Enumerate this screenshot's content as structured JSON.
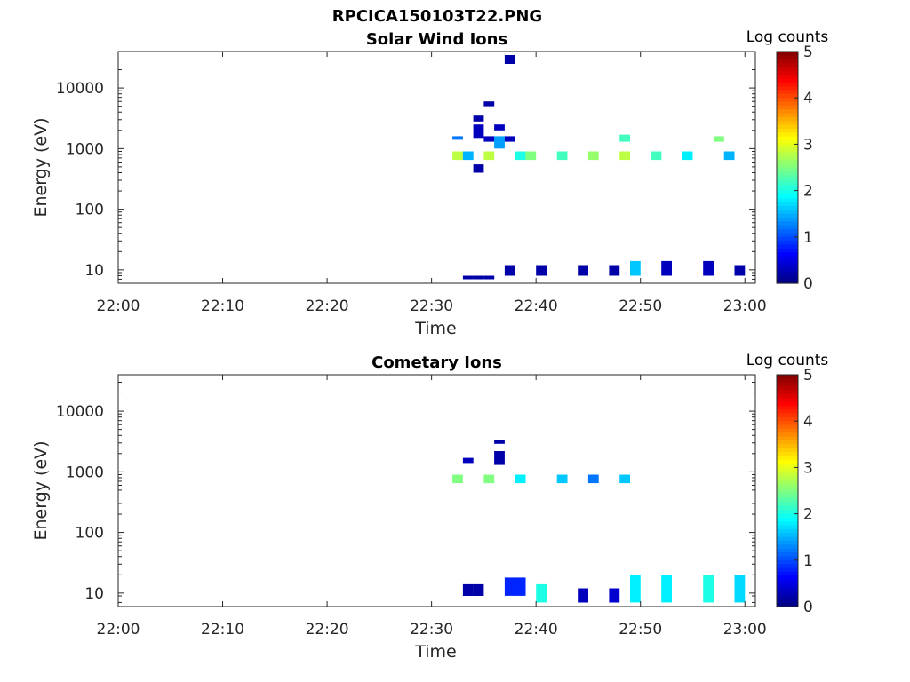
{
  "figure": {
    "filename": "RPCICA150103T22.PNG"
  },
  "chart_data": [
    {
      "type": "heatmap",
      "title": "Solar Wind Ions",
      "xlabel": "Time",
      "ylabel": "Energy (eV)",
      "x_ticks": [
        "22:00",
        "22:10",
        "22:20",
        "22:30",
        "22:40",
        "22:50",
        "23:00"
      ],
      "x_range": [
        "22:00",
        "23:01"
      ],
      "y_scale": "log",
      "y_ticks": [
        10,
        100,
        1000,
        10000
      ],
      "y_tick_labels": [
        "10",
        "100",
        "1000",
        "10000"
      ],
      "y_range": [
        6,
        40000
      ],
      "colorbar": {
        "label": "Log counts",
        "range": [
          0,
          5
        ],
        "ticks": [
          "0",
          "1",
          "2",
          "3",
          "4",
          "5"
        ],
        "colormap": "jet"
      },
      "cells": [
        {
          "t": "22:33",
          "e": [
            7,
            8
          ],
          "c": 0.2
        },
        {
          "t": "22:34",
          "e": [
            7,
            8
          ],
          "c": 0.2
        },
        {
          "t": "22:35",
          "e": [
            7,
            8
          ],
          "c": 0.2
        },
        {
          "t": "22:32",
          "e": [
            1400,
            1600
          ],
          "c": 1.2
        },
        {
          "t": "22:32",
          "e": [
            650,
            900
          ],
          "c": 2.8
        },
        {
          "t": "22:33",
          "e": [
            650,
            900
          ],
          "c": 1.5
        },
        {
          "t": "22:34",
          "e": [
            400,
            550
          ],
          "c": 0.2
        },
        {
          "t": "22:34",
          "e": [
            1500,
            2500
          ],
          "c": 0.3
        },
        {
          "t": "22:34",
          "e": [
            2800,
            3500
          ],
          "c": 0.2
        },
        {
          "t": "22:35",
          "e": [
            5000,
            6000
          ],
          "c": 0.2
        },
        {
          "t": "22:35",
          "e": [
            1300,
            1600
          ],
          "c": 0.3
        },
        {
          "t": "22:35",
          "e": [
            650,
            900
          ],
          "c": 2.8
        },
        {
          "t": "22:36",
          "e": [
            2000,
            2500
          ],
          "c": 0.3
        },
        {
          "t": "22:36",
          "e": [
            1000,
            1600
          ],
          "c": 1.4
        },
        {
          "t": "22:37",
          "e": [
            25000,
            35000
          ],
          "c": 0.2
        },
        {
          "t": "22:37",
          "e": [
            8,
            12
          ],
          "c": 0.2
        },
        {
          "t": "22:37",
          "e": [
            1300,
            1600
          ],
          "c": 0.3
        },
        {
          "t": "22:38",
          "e": [
            650,
            900
          ],
          "c": 2.0
        },
        {
          "t": "22:39",
          "e": [
            650,
            900
          ],
          "c": 2.5
        },
        {
          "t": "22:42",
          "e": [
            650,
            900
          ],
          "c": 2.2
        },
        {
          "t": "22:45",
          "e": [
            650,
            900
          ],
          "c": 2.6
        },
        {
          "t": "22:48",
          "e": [
            650,
            900
          ],
          "c": 2.8
        },
        {
          "t": "22:48",
          "e": [
            1300,
            1700
          ],
          "c": 2.2
        },
        {
          "t": "22:51",
          "e": [
            650,
            900
          ],
          "c": 2.2
        },
        {
          "t": "22:54",
          "e": [
            650,
            900
          ],
          "c": 1.8
        },
        {
          "t": "22:57",
          "e": [
            1300,
            1600
          ],
          "c": 2.5
        },
        {
          "t": "22:58",
          "e": [
            650,
            900
          ],
          "c": 1.5
        },
        {
          "t": "22:40",
          "e": [
            8,
            12
          ],
          "c": 0.2
        },
        {
          "t": "22:44",
          "e": [
            8,
            12
          ],
          "c": 0.2
        },
        {
          "t": "22:47",
          "e": [
            8,
            12
          ],
          "c": 0.2
        },
        {
          "t": "22:49",
          "e": [
            8,
            14
          ],
          "c": 1.6
        },
        {
          "t": "22:52",
          "e": [
            8,
            14
          ],
          "c": 0.3
        },
        {
          "t": "22:56",
          "e": [
            8,
            14
          ],
          "c": 0.3
        },
        {
          "t": "22:59",
          "e": [
            8,
            12
          ],
          "c": 0.2
        }
      ]
    },
    {
      "type": "heatmap",
      "title": "Cometary Ions",
      "xlabel": "Time",
      "ylabel": "Energy (eV)",
      "x_ticks": [
        "22:00",
        "22:10",
        "22:20",
        "22:30",
        "22:40",
        "22:50",
        "23:00"
      ],
      "x_range": [
        "22:00",
        "23:01"
      ],
      "y_scale": "log",
      "y_ticks": [
        10,
        100,
        1000,
        10000
      ],
      "y_tick_labels": [
        "10",
        "100",
        "1000",
        "10000"
      ],
      "y_range": [
        6,
        40000
      ],
      "colorbar": {
        "label": "Log counts",
        "range": [
          0,
          5
        ],
        "ticks": [
          "0",
          "1",
          "2",
          "3",
          "4",
          "5"
        ],
        "colormap": "jet"
      },
      "cells": [
        {
          "t": "22:33",
          "e": [
            9,
            14
          ],
          "c": 0.2
        },
        {
          "t": "22:34",
          "e": [
            9,
            14
          ],
          "c": 0.2
        },
        {
          "t": "22:37",
          "e": [
            9,
            18
          ],
          "c": 0.8
        },
        {
          "t": "22:38",
          "e": [
            9,
            18
          ],
          "c": 0.8
        },
        {
          "t": "22:32",
          "e": [
            650,
            900
          ],
          "c": 2.5
        },
        {
          "t": "22:35",
          "e": [
            650,
            900
          ],
          "c": 2.5
        },
        {
          "t": "22:38",
          "e": [
            650,
            900
          ],
          "c": 1.8
        },
        {
          "t": "22:36",
          "e": [
            1300,
            2200
          ],
          "c": 0.2
        },
        {
          "t": "22:36",
          "e": [
            2900,
            3300
          ],
          "c": 0.2
        },
        {
          "t": "22:33",
          "e": [
            1400,
            1700
          ],
          "c": 0.3
        },
        {
          "t": "22:42",
          "e": [
            650,
            900
          ],
          "c": 1.6
        },
        {
          "t": "22:45",
          "e": [
            650,
            900
          ],
          "c": 1.2
        },
        {
          "t": "22:48",
          "e": [
            650,
            900
          ],
          "c": 1.6
        },
        {
          "t": "22:40",
          "e": [
            7,
            14
          ],
          "c": 2.0
        },
        {
          "t": "22:44",
          "e": [
            7,
            12
          ],
          "c": 0.3
        },
        {
          "t": "22:47",
          "e": [
            7,
            12
          ],
          "c": 0.4
        },
        {
          "t": "22:49",
          "e": [
            7,
            20
          ],
          "c": 1.8
        },
        {
          "t": "22:52",
          "e": [
            7,
            20
          ],
          "c": 1.8
        },
        {
          "t": "22:56",
          "e": [
            7,
            20
          ],
          "c": 2.0
        },
        {
          "t": "22:59",
          "e": [
            7,
            20
          ],
          "c": 1.7
        }
      ]
    }
  ]
}
